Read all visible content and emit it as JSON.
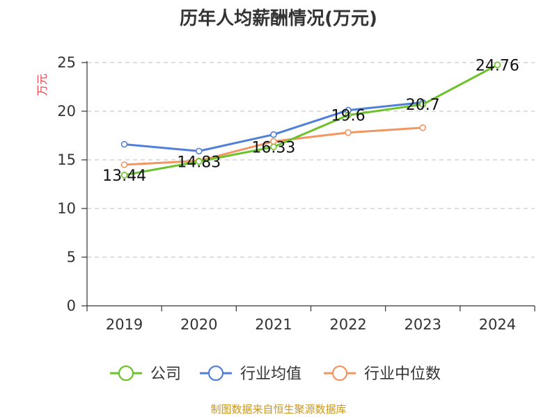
{
  "chart_data": {
    "type": "line",
    "title": "历年人均薪酬情况(万元)",
    "ylabel": "万元",
    "ylabel_color": "#e8414b",
    "categories": [
      "2019",
      "2020",
      "2021",
      "2022",
      "2023",
      "2024"
    ],
    "ylim": [
      0,
      25
    ],
    "yticks": [
      "0",
      "5",
      "10",
      "15",
      "20",
      "25"
    ],
    "grid": true,
    "legend_position": "bottom",
    "series": [
      {
        "name": "公司",
        "color": "#6ac228",
        "values": [
          13.44,
          14.83,
          16.33,
          19.6,
          20.7,
          24.76
        ],
        "labels": [
          "13.44",
          "14.83",
          "16.33",
          "19.6",
          "20.7",
          "24.76"
        ]
      },
      {
        "name": "行业均值",
        "color": "#4f7fd8",
        "values": [
          16.6,
          15.9,
          17.6,
          20.1,
          20.9,
          null
        ]
      },
      {
        "name": "行业中位数",
        "color": "#f29560",
        "values": [
          14.5,
          14.9,
          16.9,
          17.8,
          18.3,
          null
        ]
      }
    ]
  },
  "source_note": "制图数据来自恒生聚源数据库"
}
